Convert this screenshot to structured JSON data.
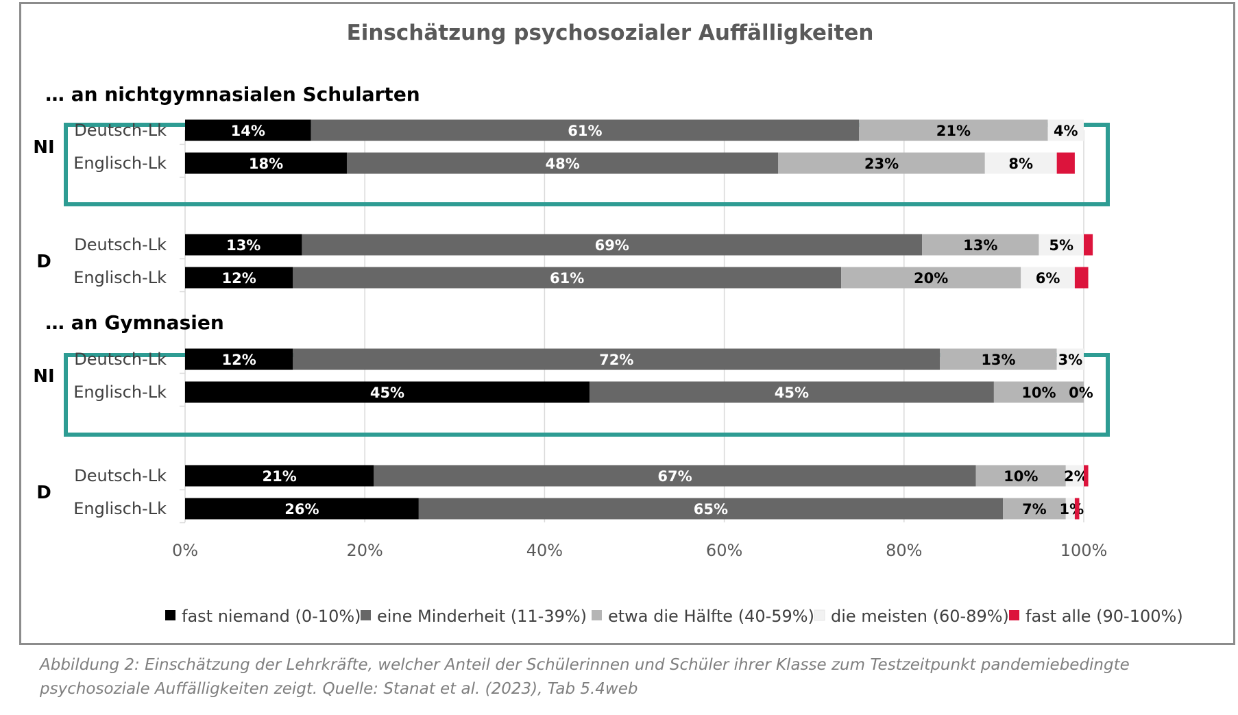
{
  "chart_data": {
    "type": "bar",
    "orientation": "horizontal",
    "stacked": true,
    "normalized": true,
    "title": "Einschätzung psychosozialer Auffälligkeiten",
    "xlim": [
      0,
      100
    ],
    "x_ticks": [
      "0%",
      "20%",
      "40%",
      "60%",
      "80%",
      "100%"
    ],
    "grid": true,
    "legend_position": "bottom",
    "series": [
      {
        "name": "fast niemand (0-10%)",
        "color": "#000000",
        "label_color": "#ffffff"
      },
      {
        "name": "eine Minderheit (11-39%)",
        "color": "#676767",
        "label_color": "#ffffff"
      },
      {
        "name": "etwa die Hälfte (40-59%)",
        "color": "#b5b5b5",
        "label_color": "#000000"
      },
      {
        "name": "die meisten (60-89%)",
        "color": "#f2f2f2",
        "label_color": "#000000"
      },
      {
        "name": "fast alle (90-100%)",
        "color": "#dc143c",
        "label_color": "#000000"
      }
    ],
    "sections": [
      {
        "title": "… an nichtgymnasialen Schularten",
        "groups": [
          {
            "region": "NI",
            "highlighted": true,
            "rows": [
              {
                "label": "Deutsch-Lk",
                "values": [
                  14,
                  61,
                  21,
                  4,
                  0
                ],
                "labels": [
                  "14%",
                  "61%",
                  "21%",
                  "4%",
                  ""
                ]
              },
              {
                "label": "Englisch-Lk",
                "values": [
                  18,
                  48,
                  23,
                  8,
                  2
                ],
                "labels": [
                  "18%",
                  "48%",
                  "23%",
                  "8%",
                  ""
                ]
              }
            ]
          },
          {
            "region": "D",
            "highlighted": false,
            "rows": [
              {
                "label": "Deutsch-Lk",
                "values": [
                  13,
                  69,
                  13,
                  5,
                  1
                ],
                "labels": [
                  "13%",
                  "69%",
                  "13%",
                  "5%",
                  ""
                ]
              },
              {
                "label": "Englisch-Lk",
                "values": [
                  12,
                  61,
                  20,
                  6,
                  1.5
                ],
                "labels": [
                  "12%",
                  "61%",
                  "20%",
                  "6%",
                  ""
                ]
              }
            ]
          }
        ]
      },
      {
        "title": "… an Gymnasien",
        "groups": [
          {
            "region": "NI",
            "highlighted": true,
            "rows": [
              {
                "label": "Deutsch-Lk",
                "values": [
                  12,
                  72,
                  13,
                  3,
                  0
                ],
                "labels": [
                  "12%",
                  "72%",
                  "13%",
                  "3%",
                  ""
                ]
              },
              {
                "label": "Englisch-Lk",
                "values": [
                  45,
                  45,
                  10,
                  0,
                  0
                ],
                "labels": [
                  "45%",
                  "45%",
                  "10%",
                  "0%",
                  ""
                ]
              }
            ]
          },
          {
            "region": "D",
            "highlighted": false,
            "rows": [
              {
                "label": "Deutsch-Lk",
                "values": [
                  21,
                  67,
                  10,
                  2,
                  0.5
                ],
                "labels": [
                  "21%",
                  "67%",
                  "10%",
                  "2%",
                  ""
                ]
              },
              {
                "label": "Englisch-Lk",
                "values": [
                  26,
                  65,
                  7,
                  1,
                  0.5
                ],
                "labels": [
                  "26%",
                  "65%",
                  "7%",
                  "1%",
                  ""
                ]
              }
            ]
          }
        ]
      }
    ],
    "highlight_color": "#2e9c93"
  },
  "caption": {
    "line1": "Abbildung 2: Einschätzung der Lehrkräfte, welcher Anteil der Schülerinnen und Schüler ihrer Klasse zum Testzeitpunkt pandemiebedingte",
    "line2": "psychosoziale Auffälligkeiten zeigt. Quelle: Stanat et al. (2023), Tab 5.4web"
  }
}
